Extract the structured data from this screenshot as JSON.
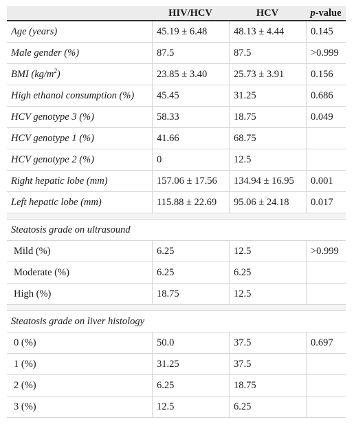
{
  "header": {
    "col0": "",
    "col1": "HIV/HCV",
    "col2": "HCV",
    "col3_p": "p",
    "col3_rest": "-value"
  },
  "rows": [
    {
      "label": "Age (years)",
      "hivhcv": "45.19 ± 6.48",
      "hcv": "48.13 ± 4.44",
      "p": "0.145"
    },
    {
      "label": "Male gender (%)",
      "hivhcv": "87.5",
      "hcv": "87.5",
      "p": ">0.999"
    },
    {
      "label_main": "BMI (kg/m",
      "label_sup": "2",
      "label_end": ")",
      "hivhcv": "23.85 ± 3.40",
      "hcv": "25.73 ± 3.91",
      "p": "0.156"
    },
    {
      "label": "High ethanol consumption (%)",
      "hivhcv": "45.45",
      "hcv": "31.25",
      "p": "0.686"
    },
    {
      "label": "HCV genotype 3 (%)",
      "hivhcv": "58.33",
      "hcv": "18.75",
      "p": "0.049"
    },
    {
      "label": "HCV genotype 1 (%)",
      "hivhcv": "41.66",
      "hcv": "68.75",
      "p": ""
    },
    {
      "label": "HCV genotype 2 (%)",
      "hivhcv": "0",
      "hcv": "12.5",
      "p": ""
    },
    {
      "label": "Right hepatic lobe (mm)",
      "hivhcv": "157.06 ± 17.56",
      "hcv": "134.94 ± 16.95",
      "p": "0.001"
    },
    {
      "label": "Left hepatic lobe (mm)",
      "hivhcv": "115.88 ± 22.69",
      "hcv": "95.06 ± 24.18",
      "p": "0.017"
    }
  ],
  "ultrasound": {
    "title": "Steatosis grade on ultrasound",
    "rows": [
      {
        "label": "Mild (%)",
        "hivhcv": "6.25",
        "hcv": "12.5",
        "p": ">0.999"
      },
      {
        "label": "Moderate (%)",
        "hivhcv": "6.25",
        "hcv": "6.25",
        "p": ""
      },
      {
        "label": "High (%)",
        "hivhcv": "18.75",
        "hcv": "12.5",
        "p": ""
      }
    ]
  },
  "histology": {
    "title": "Steatosis grade on liver histology",
    "rows": [
      {
        "label": "0 (%)",
        "hivhcv": "50.0",
        "hcv": "37.5",
        "p": "0.697"
      },
      {
        "label": "1 (%)",
        "hivhcv": "31.25",
        "hcv": "37.5",
        "p": ""
      },
      {
        "label": "2 (%)",
        "hivhcv": "6.25",
        "hcv": "18.75",
        "p": ""
      },
      {
        "label": "3 (%)",
        "hivhcv": "12.5",
        "hcv": "6.25",
        "p": ""
      }
    ]
  }
}
